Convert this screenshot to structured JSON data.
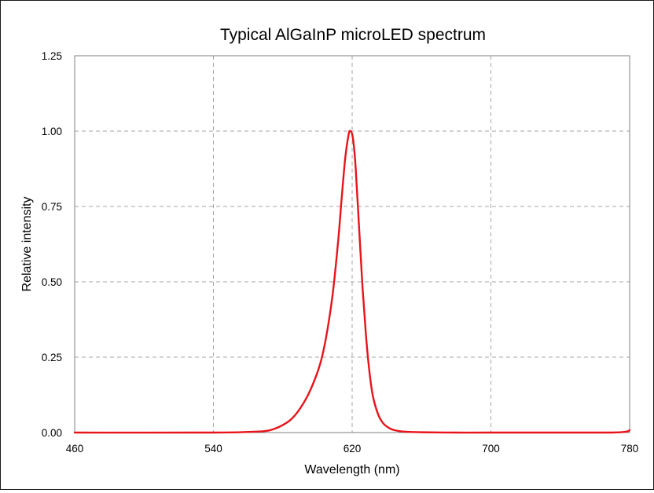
{
  "chart_data": {
    "type": "line",
    "title": "Typical AlGaInP microLED spectrum",
    "xlabel": "Wavelength  (nm)",
    "ylabel": "Relative intensity",
    "xlim": [
      460,
      780
    ],
    "ylim": [
      0,
      1.25
    ],
    "x_ticks": [
      "460",
      "540",
      "620",
      "700",
      "780"
    ],
    "y_ticks": [
      "0.00",
      "0.25",
      "0.50",
      "0.75",
      "1.00",
      "1.25"
    ],
    "grid": "dashed",
    "legend": "none",
    "series": [
      {
        "color": "#e8141b",
        "x": [
          460,
          540,
          560,
          570,
          575,
          580,
          585,
          590,
          595,
          600,
          603,
          606,
          609,
          612,
          614,
          616,
          618,
          619,
          620,
          621,
          622,
          624,
          626,
          628,
          630,
          632,
          635,
          638,
          642,
          646,
          650,
          660,
          680,
          700,
          740,
          770,
          778,
          780
        ],
        "y": [
          0.0,
          0.0,
          0.002,
          0.005,
          0.012,
          0.025,
          0.045,
          0.08,
          0.13,
          0.2,
          0.26,
          0.35,
          0.47,
          0.64,
          0.78,
          0.91,
          0.99,
          1.0,
          0.99,
          0.95,
          0.88,
          0.68,
          0.48,
          0.32,
          0.2,
          0.12,
          0.06,
          0.03,
          0.013,
          0.006,
          0.003,
          0.001,
          0.0,
          0.0,
          0.0,
          0.0,
          0.003,
          0.008
        ]
      }
    ]
  }
}
